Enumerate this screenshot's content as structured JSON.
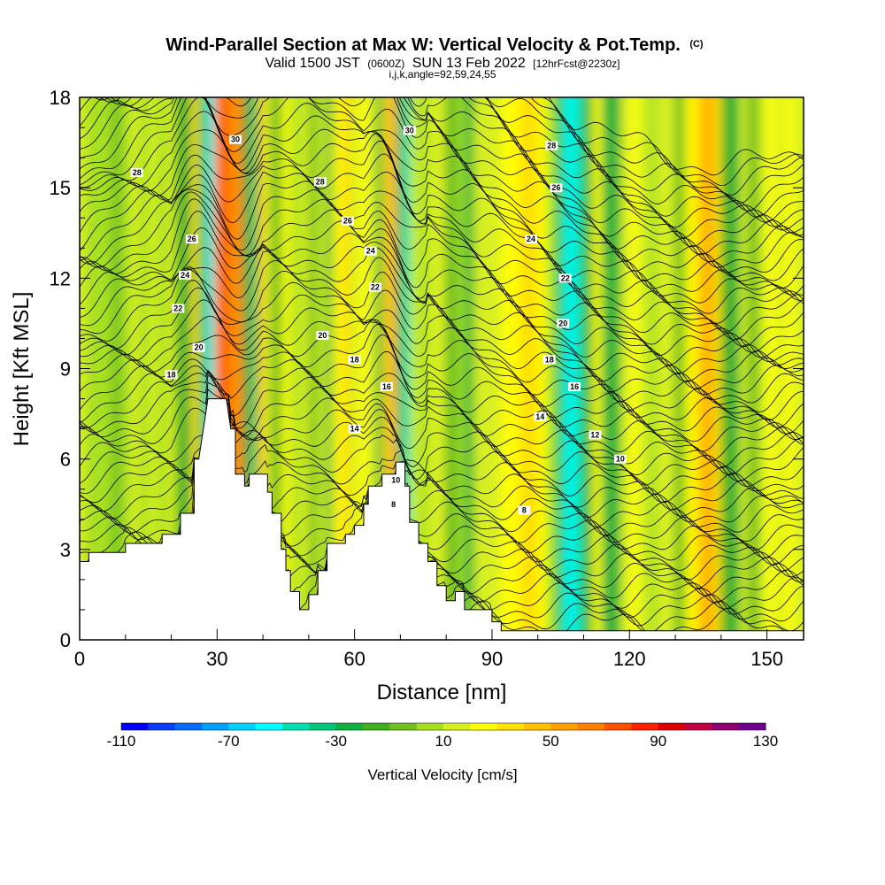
{
  "chart_data": {
    "type": "heatmap",
    "title": {
      "main": "Wind-Parallel Section at Max W: Vertical Velocity & Pot.Temp.",
      "copyright": "(C)",
      "valid_prefix": "Valid 1500 JST",
      "utc": "(0600Z)",
      "valid_date": "SUN 13 Feb 2022",
      "forecast": "[12hrFcst@2230z]",
      "line3": "i,j,k,angle=92,59,24,55"
    },
    "xlabel": "Distance [nm]",
    "ylabel": "Height [Kft MSL]",
    "xlim": [
      0,
      158
    ],
    "ylim": [
      0,
      18
    ],
    "x_ticks": [
      0,
      30,
      60,
      90,
      120,
      150
    ],
    "x_minor_ticks": [
      10,
      20,
      40,
      50,
      70,
      80,
      100,
      110,
      130,
      140
    ],
    "y_ticks": [
      0,
      3,
      6,
      9,
      12,
      15,
      18
    ],
    "y_minor_ticks": [
      1,
      2,
      4,
      5,
      7,
      8,
      10,
      11,
      13,
      14,
      16,
      17
    ],
    "terrain": {
      "x": [
        0,
        2,
        2,
        10,
        10,
        18,
        18,
        22,
        22,
        25,
        25,
        26,
        28,
        32,
        33,
        34,
        34,
        36,
        36,
        37,
        37,
        41,
        41,
        42,
        42,
        44,
        44,
        45,
        45,
        46,
        46,
        48,
        48,
        50,
        50,
        52,
        52,
        54,
        54,
        58,
        58,
        60,
        60,
        62,
        62,
        63,
        63,
        66,
        66,
        69,
        69,
        71,
        71,
        72,
        72,
        74,
        74,
        76,
        76,
        78,
        78,
        80,
        80,
        82,
        82,
        84,
        84,
        90,
        90,
        92,
        92,
        93,
        93,
        105,
        105,
        120,
        120,
        140,
        140,
        158
      ],
      "y": [
        2.6,
        2.6,
        2.9,
        2.9,
        3.2,
        3.2,
        3.5,
        3.5,
        4.2,
        4.2,
        6.0,
        6.0,
        8.0,
        8.0,
        7.0,
        7.0,
        5.5,
        5.5,
        5.1,
        5.1,
        5.5,
        5.5,
        4.9,
        4.9,
        4.2,
        4.2,
        3.0,
        3.0,
        2.3,
        2.3,
        1.6,
        1.6,
        1.0,
        1.0,
        1.5,
        1.5,
        2.3,
        2.3,
        3.2,
        3.2,
        3.5,
        3.5,
        3.8,
        3.8,
        4.5,
        4.5,
        5.1,
        5.1,
        5.5,
        5.5,
        5.9,
        5.9,
        5.1,
        5.1,
        3.9,
        3.9,
        3.2,
        3.2,
        2.6,
        2.6,
        1.8,
        1.8,
        1.3,
        1.3,
        1.6,
        1.6,
        1.0,
        1.0,
        0.6,
        0.6,
        0.3,
        0.3,
        0.3,
        0.3,
        0.3,
        0.3,
        0.3,
        0.3,
        0.3,
        0.3
      ]
    },
    "vertical_velocity_columns": [
      {
        "x": 0.5,
        "w": 10
      },
      {
        "x": 2,
        "w": 8
      },
      {
        "x": 4,
        "w": 5
      },
      {
        "x": 6,
        "w": 3
      },
      {
        "x": 8,
        "w": -5
      },
      {
        "x": 10,
        "w": 8
      },
      {
        "x": 12,
        "w": 12
      },
      {
        "x": 14,
        "w": 4
      },
      {
        "x": 16,
        "w": 10
      },
      {
        "x": 18,
        "w": 6
      },
      {
        "x": 20,
        "w": 12
      },
      {
        "x": 22,
        "w": -18
      },
      {
        "x": 23.5,
        "w": -28
      },
      {
        "x": 25,
        "w": 35
      },
      {
        "x": 27,
        "w": -22
      },
      {
        "x": 28.5,
        "w": -55
      },
      {
        "x": 30,
        "w": 60
      },
      {
        "x": 32,
        "w": 75
      },
      {
        "x": 33.5,
        "w": 55
      },
      {
        "x": 35,
        "w": 65
      },
      {
        "x": 36.5,
        "w": -22
      },
      {
        "x": 38,
        "w": -32
      },
      {
        "x": 39.5,
        "w": 40
      },
      {
        "x": 41,
        "w": 15
      },
      {
        "x": 43,
        "w": -12
      },
      {
        "x": 45,
        "w": 20
      },
      {
        "x": 47,
        "w": 8
      },
      {
        "x": 49,
        "w": 15
      },
      {
        "x": 51,
        "w": -10
      },
      {
        "x": 53,
        "w": 12
      },
      {
        "x": 54.5,
        "w": -26
      },
      {
        "x": 56,
        "w": 22
      },
      {
        "x": 58,
        "w": 30
      },
      {
        "x": 60,
        "w": 18
      },
      {
        "x": 62,
        "w": 20
      },
      {
        "x": 64,
        "w": 10
      },
      {
        "x": 65.5,
        "w": -24
      },
      {
        "x": 67,
        "w": 35
      },
      {
        "x": 68.5,
        "w": 55
      },
      {
        "x": 70,
        "w": -35
      },
      {
        "x": 71.5,
        "w": -45
      },
      {
        "x": 73,
        "w": 12
      },
      {
        "x": 75,
        "w": 8
      },
      {
        "x": 77,
        "w": 14
      },
      {
        "x": 79,
        "w": 10
      },
      {
        "x": 81,
        "w": -20
      },
      {
        "x": 83,
        "w": 8
      },
      {
        "x": 85,
        "w": -25
      },
      {
        "x": 87,
        "w": 10
      },
      {
        "x": 89,
        "w": 18
      },
      {
        "x": 91,
        "w": 12
      },
      {
        "x": 93,
        "w": 25
      },
      {
        "x": 95,
        "w": 20
      },
      {
        "x": 97,
        "w": 38
      },
      {
        "x": 99,
        "w": 30
      },
      {
        "x": 101,
        "w": 22
      },
      {
        "x": 103,
        "w": 5
      },
      {
        "x": 105,
        "w": -40
      },
      {
        "x": 107,
        "w": -60
      },
      {
        "x": 109,
        "w": -45
      },
      {
        "x": 111,
        "w": -15
      },
      {
        "x": 113,
        "w": 20
      },
      {
        "x": 115,
        "w": -30
      },
      {
        "x": 117,
        "w": -22
      },
      {
        "x": 119,
        "w": 10
      },
      {
        "x": 121,
        "w": 25
      },
      {
        "x": 123,
        "w": 14
      },
      {
        "x": 125,
        "w": 5
      },
      {
        "x": 127,
        "w": 12
      },
      {
        "x": 129,
        "w": 18
      },
      {
        "x": 131,
        "w": -18
      },
      {
        "x": 133,
        "w": 22
      },
      {
        "x": 135,
        "w": 30
      },
      {
        "x": 137,
        "w": 50
      },
      {
        "x": 139,
        "w": 30
      },
      {
        "x": 141,
        "w": -12
      },
      {
        "x": 143,
        "w": -24
      },
      {
        "x": 145,
        "w": 12
      },
      {
        "x": 147,
        "w": -20
      },
      {
        "x": 149,
        "w": 15
      },
      {
        "x": 151,
        "w": 28
      },
      {
        "x": 153,
        "w": 10
      },
      {
        "x": 155,
        "w": 22
      },
      {
        "x": 157,
        "w": 18
      }
    ],
    "potential_temperature_labels": [
      {
        "x": 12.5,
        "y": 15.5,
        "text": "28"
      },
      {
        "x": 34,
        "y": 16.6,
        "text": "30"
      },
      {
        "x": 72,
        "y": 16.9,
        "text": "30"
      },
      {
        "x": 52.5,
        "y": 15.2,
        "text": "28"
      },
      {
        "x": 103,
        "y": 16.4,
        "text": "28"
      },
      {
        "x": 104,
        "y": 15.0,
        "text": "26"
      },
      {
        "x": 24.5,
        "y": 13.3,
        "text": "26"
      },
      {
        "x": 58.5,
        "y": 13.9,
        "text": "26"
      },
      {
        "x": 98.5,
        "y": 13.3,
        "text": "24"
      },
      {
        "x": 23,
        "y": 12.1,
        "text": "24"
      },
      {
        "x": 63.5,
        "y": 12.9,
        "text": "24"
      },
      {
        "x": 106,
        "y": 12.0,
        "text": "22"
      },
      {
        "x": 21.5,
        "y": 11.0,
        "text": "22"
      },
      {
        "x": 64.5,
        "y": 11.7,
        "text": "22"
      },
      {
        "x": 105.5,
        "y": 10.5,
        "text": "20"
      },
      {
        "x": 26,
        "y": 9.7,
        "text": "20"
      },
      {
        "x": 53,
        "y": 10.1,
        "text": "20"
      },
      {
        "x": 102.5,
        "y": 9.3,
        "text": "18"
      },
      {
        "x": 20,
        "y": 8.8,
        "text": "18"
      },
      {
        "x": 60,
        "y": 9.3,
        "text": "18"
      },
      {
        "x": 108,
        "y": 8.4,
        "text": "16"
      },
      {
        "x": 67,
        "y": 8.4,
        "text": "16"
      },
      {
        "x": 100.5,
        "y": 7.4,
        "text": "14"
      },
      {
        "x": 60,
        "y": 7.0,
        "text": "14"
      },
      {
        "x": 112.5,
        "y": 6.8,
        "text": "12"
      },
      {
        "x": 118,
        "y": 6.0,
        "text": "10"
      },
      {
        "x": 69,
        "y": 5.3,
        "text": "10"
      },
      {
        "x": 97,
        "y": 4.3,
        "text": "8"
      },
      {
        "x": 68.5,
        "y": 4.5,
        "text": "8"
      }
    ],
    "colorbar": {
      "label": "Vertical Velocity [cm/s]",
      "min": -110,
      "max": 130,
      "step": 10,
      "ticks": [
        "-110",
        "-70",
        "-30",
        "10",
        "50",
        "90",
        "130"
      ],
      "colors": [
        "#0000ff",
        "#0a3cff",
        "#0a6cff",
        "#00a0ff",
        "#00d0ff",
        "#00ffff",
        "#00e0b0",
        "#00c878",
        "#10b040",
        "#40b020",
        "#70c020",
        "#a8e020",
        "#d8f020",
        "#ffff00",
        "#ffe000",
        "#ffc000",
        "#ffa000",
        "#ff8000",
        "#ff5000",
        "#ff2000",
        "#e00000",
        "#c00040",
        "#900070",
        "#700090"
      ]
    }
  }
}
